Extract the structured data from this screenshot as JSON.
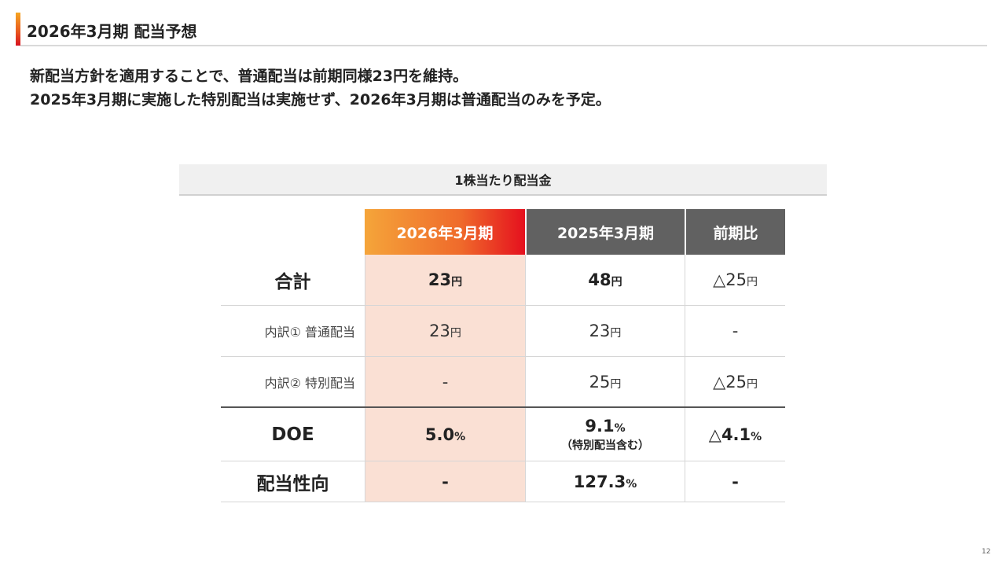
{
  "title": "2026年3月期 配当予想",
  "lead": {
    "line1": "新配当方針を適用することで、普通配当は前期同様23円を維持。",
    "line2": "2025年3月期に実施した特別配当は実施せず、2026年3月期は普通配当のみを予定。"
  },
  "table": {
    "caption": "1株当たり配当金",
    "columns": [
      "2026年3月期",
      "2025年3月期",
      "前期比"
    ],
    "rows": [
      {
        "label": "合計",
        "values": [
          {
            "num": "23",
            "unit": "円"
          },
          {
            "num": "48",
            "unit": "円"
          },
          {
            "num": "△25",
            "unit": "円"
          }
        ]
      },
      {
        "label": "内訳① 普通配当",
        "values": [
          {
            "num": "23",
            "unit": "円"
          },
          {
            "num": "23",
            "unit": "円"
          },
          {
            "num": "-",
            "unit": ""
          }
        ]
      },
      {
        "label": "内訳② 特別配当",
        "values": [
          {
            "num": "-",
            "unit": ""
          },
          {
            "num": "25",
            "unit": "円"
          },
          {
            "num": "△25",
            "unit": "円"
          }
        ]
      },
      {
        "label": "DOE",
        "values": [
          {
            "num": "5.0",
            "unit": "%"
          },
          {
            "num": "9.1",
            "unit": "%",
            "note": "（特別配当含む）"
          },
          {
            "num": "△4.1",
            "unit": "%"
          }
        ]
      },
      {
        "label": "配当性向",
        "values": [
          {
            "num": "-",
            "unit": ""
          },
          {
            "num": "127.3",
            "unit": "%"
          },
          {
            "num": "-",
            "unit": ""
          }
        ]
      }
    ]
  },
  "page_number": "12",
  "colors": {
    "accent_orange": "#f5a623",
    "accent_red": "#d7121f",
    "highlight_column": "#fae0d4",
    "header_gray": "#616161"
  }
}
